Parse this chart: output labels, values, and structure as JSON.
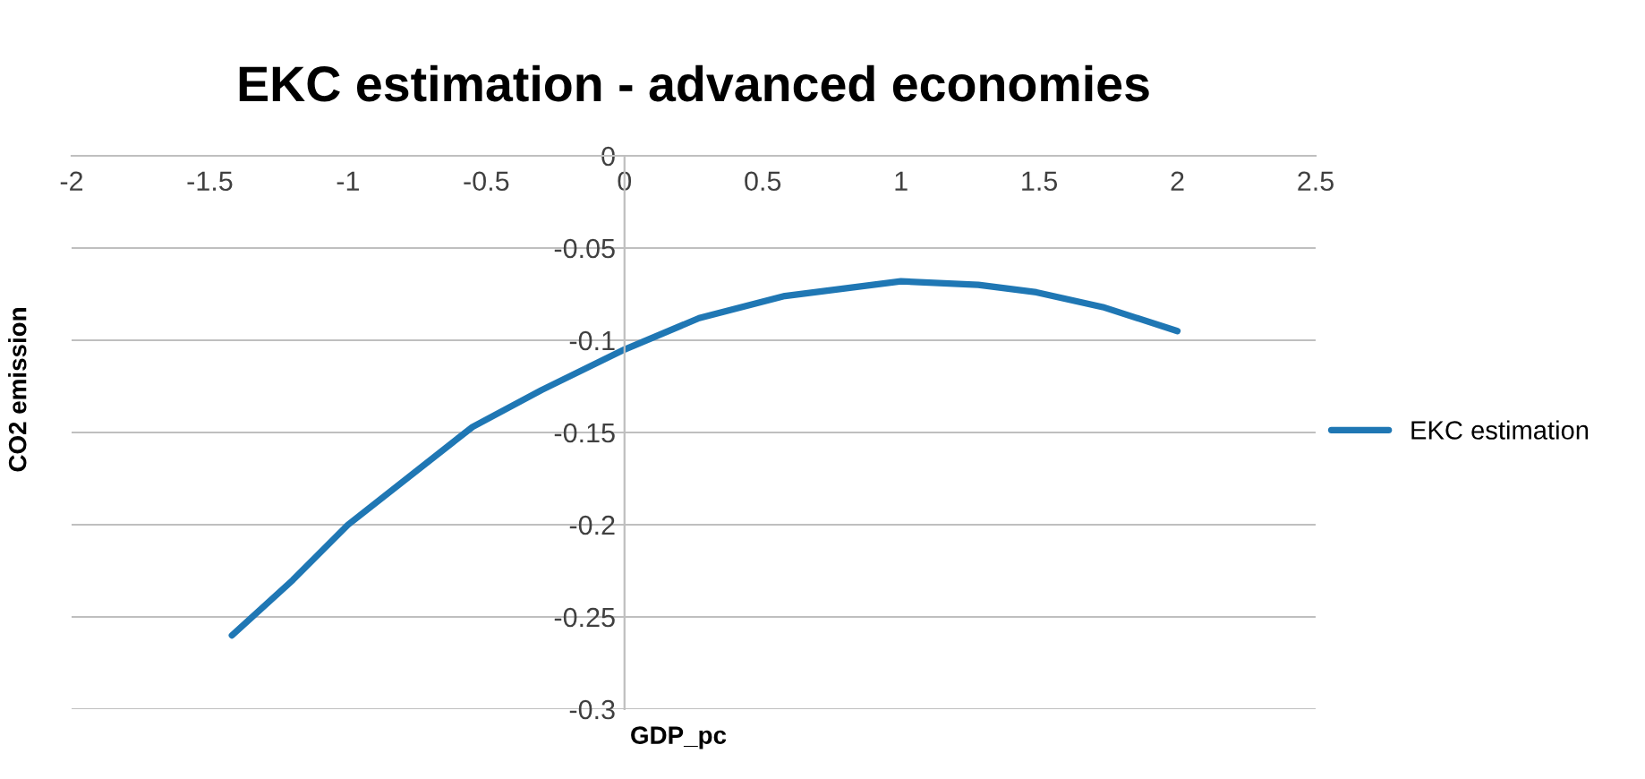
{
  "chart_data": {
    "type": "line",
    "title": "EKC estimation - advanced economies",
    "xlabel": "GDP_pc",
    "ylabel": "CO2 emission",
    "series": [
      {
        "name": "EKC estimation",
        "color": "#1f77b4",
        "x": [
          -1.42,
          -1.2,
          -1.0,
          -0.55,
          -0.3,
          0,
          0.27,
          0.58,
          1.0,
          1.28,
          1.49,
          1.73,
          2.0
        ],
        "values": [
          -0.26,
          -0.23,
          -0.2,
          -0.147,
          -0.127,
          -0.105,
          -0.088,
          -0.076,
          -0.068,
          -0.07,
          -0.074,
          -0.082,
          -0.095
        ]
      }
    ],
    "xlim": [
      -2,
      2.5
    ],
    "ylim": [
      -0.3,
      0
    ],
    "xticks": [
      -2,
      -1.5,
      -1,
      -0.5,
      0,
      0.5,
      1,
      1.5,
      2,
      2.5
    ],
    "yticks": [
      -0.3,
      -0.25,
      -0.2,
      -0.15,
      -0.1,
      -0.05,
      0
    ],
    "grid": "y",
    "legend": "right",
    "marker": "none",
    "line_style": "solid"
  }
}
